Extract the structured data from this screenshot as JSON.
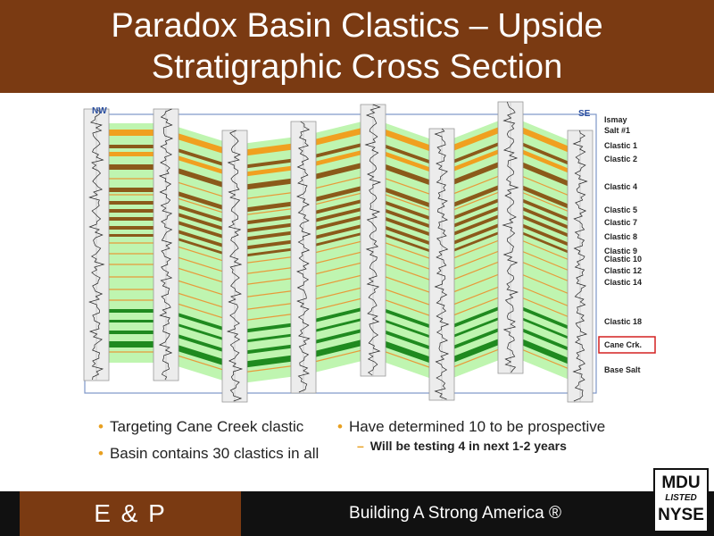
{
  "slide": {
    "title_line1": "Paradox Basin Clastics – Upside",
    "title_line2": "Stratigraphic Cross Section"
  },
  "cross_section": {
    "left_label": "NW",
    "right_label": "SE",
    "layer_labels": [
      {
        "text": "Ismay"
      },
      {
        "text": "Salt #1"
      },
      {
        "text": "Clastic 1"
      },
      {
        "text": "Clastic 2"
      },
      {
        "text": "Clastic 4"
      },
      {
        "text": "Clastic 5"
      },
      {
        "text": "Clastic 7"
      },
      {
        "text": "Clastic 8"
      },
      {
        "text": "Clastic 9"
      },
      {
        "text": "Clastic 10"
      },
      {
        "text": "Clastic 12"
      },
      {
        "text": "Clastic 14"
      },
      {
        "text": "Clastic 18"
      },
      {
        "text": "Cane Crk.",
        "highlighted": true
      },
      {
        "text": "Base Salt"
      }
    ],
    "colors": {
      "salt_fill": "#bff5b0",
      "brown_band": "#8b5a1a",
      "orange_band": "#f0a020",
      "green_band": "#1f8a1f",
      "orange_line": "#e89a3a",
      "highlight_box": "#d42020"
    }
  },
  "bullets": {
    "left": [
      "Targeting Cane Creek clastic",
      "Basin contains 30 clastics in all"
    ],
    "right": [
      "Have determined 10 to be prospective"
    ],
    "right_sub": [
      "Will be testing 4 in next 1-2 years"
    ]
  },
  "footer": {
    "segment": "E & P",
    "tagline": "Building A Strong America ®",
    "logo": {
      "line1": "MDU",
      "line2": "LISTED",
      "line3": "NYSE"
    }
  }
}
